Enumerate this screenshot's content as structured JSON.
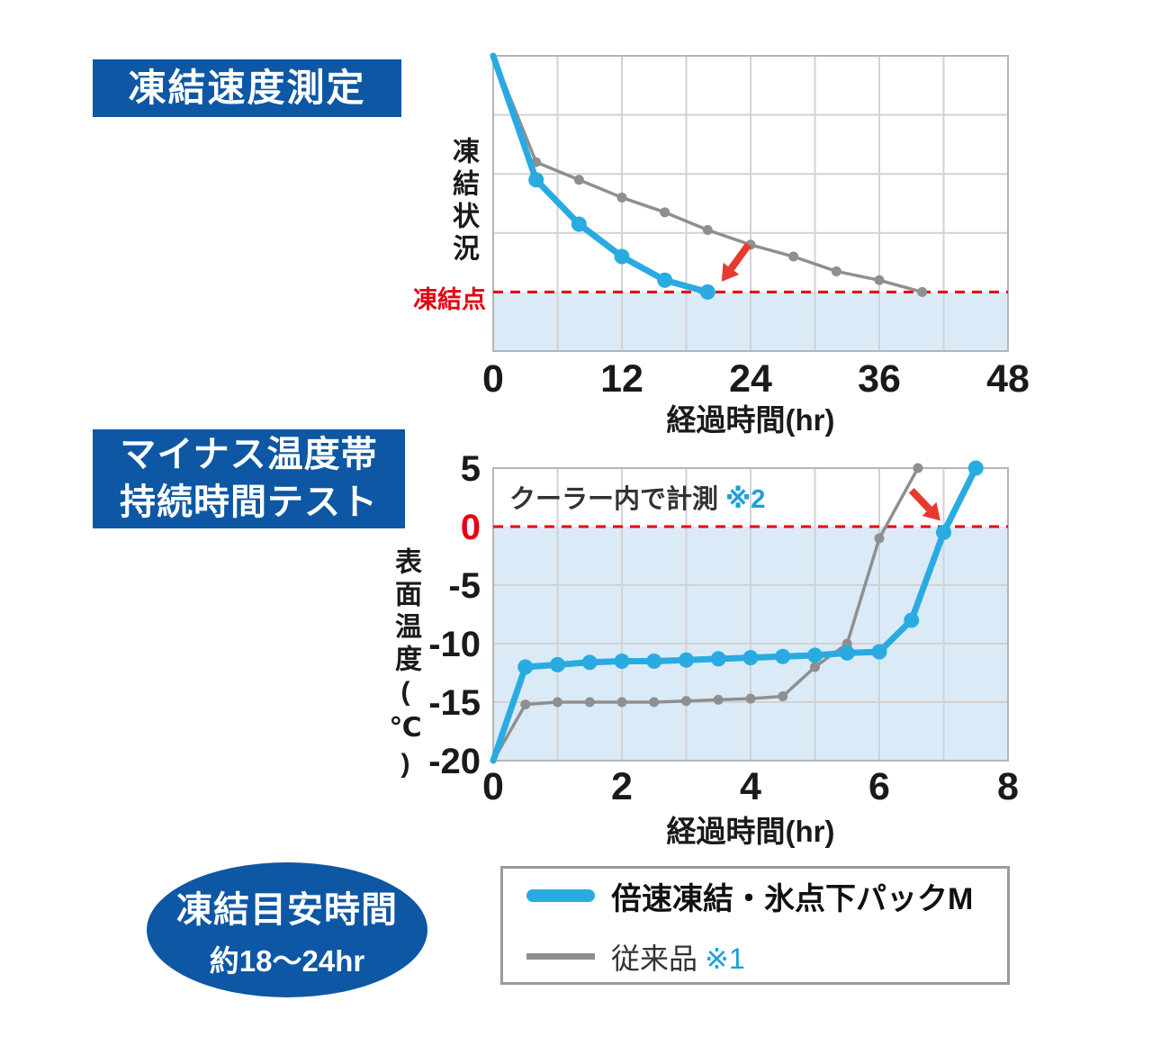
{
  "colors": {
    "badge_bg": "#0d57a4",
    "blue_line": "#29abe2",
    "gray_line": "#8f8f8f",
    "red": "#e60012",
    "arrow_red": "#e8392f",
    "shade": "#daebf7",
    "grid": "#d2d2d2",
    "border": "#b5b5b5",
    "note_blue": "#1d9ed9",
    "text_dark": "#1a1a1a"
  },
  "top_section": {
    "badge_label": "凍結速度測定",
    "ylabel": "凍結状況",
    "freeze_line_label": "凍結点",
    "xlabel": "経過時間(hr)"
  },
  "bottom_section": {
    "badge_line1": "マイナス温度帯",
    "badge_line2": "持続時間テスト",
    "ylabel": "表面温度(℃)",
    "xlabel": "経過時間(hr)",
    "note_text": "クーラー内で計測",
    "note_ref": "※2"
  },
  "legend": {
    "item1_label": "倍速凍結・氷点下パックM",
    "item2_label": "従来品",
    "item2_ref": "※1"
  },
  "freeze_badge": {
    "line1": "凍結目安時間",
    "line2": "約18〜24hr"
  },
  "chart_data": [
    {
      "id": "freeze-speed",
      "type": "line",
      "title": "凍結速度測定",
      "xlabel": "経過時間(hr)",
      "ylabel": "凍結状況",
      "xlim": [
        0,
        48
      ],
      "ylim": [
        0,
        100
      ],
      "x_ticks": [
        0,
        12,
        24,
        36,
        48
      ],
      "x_grid_step": 6,
      "y_grid_values": [
        40,
        60,
        80
      ],
      "y_scale_note": "y axis is unlabeled relative freezing state; freezing point estimated at 20 of 100",
      "reference_line": {
        "value": 20,
        "label": "凍結点"
      },
      "shade_below": 20,
      "grid": true,
      "legend_position": "below-outside",
      "series": [
        {
          "name": "倍速凍結・氷点下パックM",
          "color": "#29abe2",
          "x": [
            0,
            4,
            8,
            12,
            16,
            20
          ],
          "y": [
            100,
            58,
            43,
            32,
            24,
            20
          ]
        },
        {
          "name": "従来品 ※1",
          "color": "#8f8f8f",
          "x": [
            0,
            4,
            8,
            12,
            16,
            20,
            24,
            28,
            32,
            36,
            40
          ],
          "y": [
            100,
            64,
            58,
            52,
            47,
            41,
            36,
            32,
            27,
            24,
            20
          ]
        }
      ],
      "arrow": {
        "from": [
          23.8,
          36
        ],
        "to": [
          21.3,
          23.5
        ]
      }
    },
    {
      "id": "minus-temp",
      "type": "line",
      "title": "マイナス温度帯持続時間テスト",
      "annotation": "クーラー内で計測 ※2",
      "xlabel": "経過時間(hr)",
      "ylabel": "表面温度(℃)",
      "xlim": [
        0,
        8
      ],
      "ylim": [
        -20,
        5
      ],
      "x_ticks": [
        0,
        2,
        4,
        6,
        8
      ],
      "x_grid_step": 1,
      "y_ticks": [
        5,
        0,
        -5,
        -10,
        -15,
        -20
      ],
      "y_grid_values": [
        -15,
        -10,
        -5
      ],
      "reference_line": {
        "value": 0
      },
      "shade_below": 0,
      "grid": true,
      "legend_position": "below-outside",
      "series": [
        {
          "name": "倍速凍結・氷点下パックM",
          "color": "#29abe2",
          "x": [
            0,
            0.5,
            1,
            1.5,
            2,
            2.5,
            3,
            3.5,
            4,
            4.5,
            5,
            5.5,
            6,
            6.5,
            7,
            7.5
          ],
          "y": [
            -20,
            -12,
            -11.8,
            -11.6,
            -11.5,
            -11.5,
            -11.4,
            -11.3,
            -11.2,
            -11.1,
            -11,
            -10.8,
            -10.7,
            -8,
            -0.5,
            5
          ]
        },
        {
          "name": "従来品 ※1",
          "color": "#8f8f8f",
          "x": [
            0,
            0.5,
            1,
            1.5,
            2,
            2.5,
            3,
            3.5,
            4,
            4.5,
            5,
            5.5,
            6,
            6.6
          ],
          "y": [
            -20,
            -15.2,
            -15,
            -15,
            -15,
            -15,
            -14.9,
            -14.8,
            -14.7,
            -14.5,
            -12,
            -10,
            -1,
            5
          ]
        }
      ],
      "arrow": {
        "from": [
          6.5,
          3.1
        ],
        "to": [
          6.95,
          0.5
        ]
      }
    }
  ]
}
